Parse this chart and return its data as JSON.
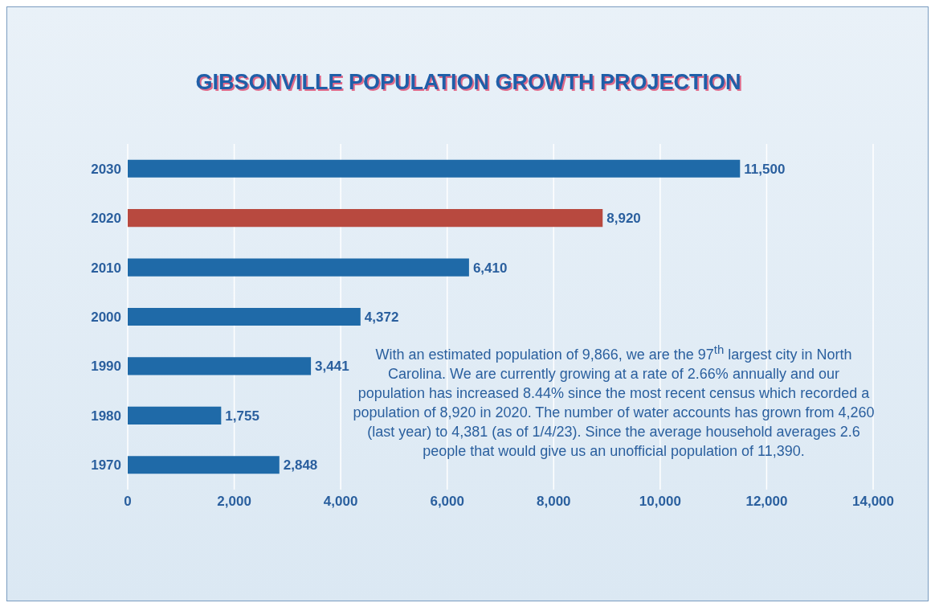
{
  "chart_data": {
    "type": "bar",
    "orientation": "horizontal",
    "title": "GIBSONVILLE POPULATION GROWTH PROJECTION",
    "categories": [
      "2030",
      "2020",
      "2010",
      "2000",
      "1990",
      "1980",
      "1970"
    ],
    "values": [
      11500,
      8920,
      6410,
      4372,
      3441,
      1755,
      2848
    ],
    "colors": [
      "#1f6aa8",
      "#b8493f",
      "#1f6aa8",
      "#1f6aa8",
      "#1f6aa8",
      "#1f6aa8",
      "#1f6aa8"
    ],
    "value_labels": [
      "11,500",
      "8,920",
      "6,410",
      "4,372",
      "3,441",
      "1,755",
      "2,848"
    ],
    "xlim": [
      0,
      14000
    ],
    "xticks": [
      0,
      {
        "value": 2000,
        "label": "2,000"
      },
      {
        "value": 4000,
        "label": "4,000"
      },
      {
        "value": 6000,
        "label": "6,000"
      },
      {
        "value": 8000,
        "label": "8,000"
      },
      {
        "value": 10000,
        "label": "10,000"
      },
      {
        "value": 12000,
        "label": "12,000"
      },
      {
        "value": 14000,
        "label": "14,000"
      }
    ],
    "grid": "x",
    "annotations": [
      "With an estimated population of 9,866, we are the 97$^{th}$ largest city in North Carolina.  We are currently growing at a rate of 2.66% annually and our population has increased 8.44% since the most recent census which recorded a population of 8,920 in 2020.  The number of water accounts has grown from 4,260 (last year) to 4,381 (as of 1/4/23).  Since the average household averages 2.6 people that would give us an unofficial population of 11,390."
    ]
  }
}
